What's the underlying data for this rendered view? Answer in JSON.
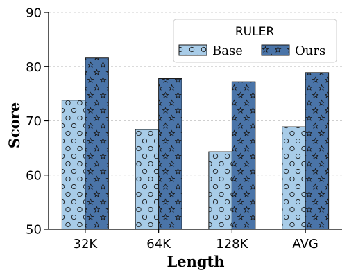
{
  "chart_data": {
    "type": "bar",
    "title": "",
    "xlabel": "Length",
    "ylabel": "Score",
    "categories": [
      "32K",
      "64K",
      "128K",
      "AVG"
    ],
    "series": [
      {
        "name": "Base",
        "values": [
          73.8,
          68.4,
          64.3,
          68.9
        ],
        "color": "#a8cce8",
        "pattern": "circles"
      },
      {
        "name": "Ours",
        "values": [
          81.6,
          77.8,
          77.2,
          78.9
        ],
        "color": "#4a74a8",
        "pattern": "stars"
      }
    ],
    "ylim": [
      50,
      90
    ],
    "yticks": [
      50,
      60,
      70,
      80,
      90
    ],
    "grid": true,
    "legend": {
      "title": "RULER",
      "position": "top-right"
    }
  }
}
